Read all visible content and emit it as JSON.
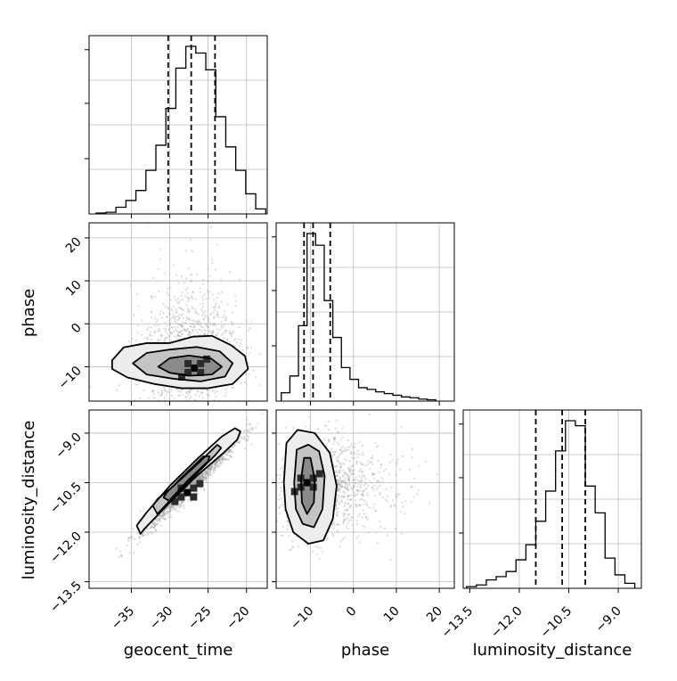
{
  "chart_data": {
    "type": "corner",
    "parameters": [
      "geocent_time",
      "phase",
      "luminosity_distance"
    ],
    "axis_ranges": {
      "geocent_time": [
        -40.5,
        -17.3
      ],
      "phase": [
        -18,
        23.5
      ],
      "luminosity_distance": [
        -13.7,
        -8.3
      ]
    },
    "ticks": {
      "geocent_time": [
        "-35",
        "-30",
        "-25",
        "-20"
      ],
      "phase": [
        "-10",
        "0",
        "10",
        "20"
      ],
      "luminosity_distance": [
        "-13.5",
        "-12.0",
        "-10.5",
        "-9.0"
      ]
    },
    "tick_values": {
      "geocent_time": [
        -35,
        -30,
        -25,
        -20
      ],
      "phase": [
        -10,
        0,
        10,
        20
      ],
      "luminosity_distance": [
        -13.5,
        -12.0,
        -10.5,
        -9.0
      ]
    },
    "grid": true,
    "quantiles": {
      "geocent_time": [
        -30.2,
        -27.2,
        -24.1
      ],
      "phase": [
        -11.5,
        -9.4,
        -5.4
      ],
      "luminosity_distance": [
        -11.5,
        -10.7,
        -10.0
      ]
    },
    "histograms": {
      "geocent_time": {
        "edges": [
          -39.6,
          -38.3,
          -37.0,
          -35.7,
          -34.4,
          -33.1,
          -31.8,
          -30.5,
          -29.2,
          -27.9,
          -26.6,
          -25.3,
          -24.0,
          -22.7,
          -21.4,
          -20.1,
          -18.8,
          -17.5
        ],
        "counts": [
          0.005,
          0.01,
          0.04,
          0.08,
          0.14,
          0.26,
          0.41,
          0.63,
          0.87,
          1.0,
          0.96,
          0.86,
          0.58,
          0.4,
          0.26,
          0.12,
          0.03
        ]
      },
      "phase": {
        "edges": [
          -16.8,
          -14.8,
          -12.8,
          -10.8,
          -8.8,
          -6.8,
          -4.8,
          -2.8,
          -0.8,
          1.2,
          3.2,
          5.2,
          7.2,
          9.2,
          11.2,
          13.2,
          15.2,
          17.2,
          19.2
        ],
        "counts": [
          0.05,
          0.15,
          0.45,
          1.0,
          0.93,
          0.6,
          0.38,
          0.2,
          0.13,
          0.08,
          0.07,
          0.055,
          0.045,
          0.035,
          0.025,
          0.02,
          0.012,
          0.008
        ]
      },
      "luminosity_distance": {
        "edges": [
          -13.6,
          -13.3,
          -13.0,
          -12.7,
          -12.4,
          -12.1,
          -11.8,
          -11.5,
          -11.2,
          -10.9,
          -10.6,
          -10.3,
          -10.0,
          -9.7,
          -9.4,
          -9.1,
          -8.8,
          -8.5
        ],
        "counts": [
          0.01,
          0.02,
          0.05,
          0.07,
          0.1,
          0.17,
          0.26,
          0.4,
          0.58,
          0.82,
          1.0,
          0.97,
          0.61,
          0.45,
          0.18,
          0.08,
          0.03
        ]
      }
    },
    "pairs": [
      {
        "x": "geocent_time",
        "y": "phase",
        "mean": [
          -27.5,
          -9.5
        ],
        "std": [
          3.2,
          5.0
        ],
        "correlation": 0.05,
        "mode": [
          -26.8,
          -10.3
        ],
        "contours": [
          [
            [
              -37.5,
              -8.5
            ],
            [
              -36.0,
              -5.5
            ],
            [
              -33.0,
              -4.5
            ],
            [
              -30.0,
              -4.5
            ],
            [
              -27.0,
              -3.0
            ],
            [
              -24.5,
              -2.8
            ],
            [
              -22.0,
              -5.0
            ],
            [
              -20.2,
              -7.5
            ],
            [
              -19.8,
              -10.5
            ],
            [
              -21.8,
              -14.0
            ],
            [
              -25.0,
              -15.0
            ],
            [
              -28.5,
              -15.0
            ],
            [
              -32.0,
              -14.0
            ],
            [
              -35.5,
              -12.5
            ],
            [
              -37.5,
              -10.5
            ]
          ],
          [
            [
              -34.8,
              -9.2
            ],
            [
              -33.0,
              -6.8
            ],
            [
              -30.0,
              -6.0
            ],
            [
              -26.5,
              -5.4
            ],
            [
              -23.5,
              -6.4
            ],
            [
              -21.8,
              -9.2
            ],
            [
              -22.8,
              -12.3
            ],
            [
              -26.0,
              -13.4
            ],
            [
              -29.5,
              -12.8
            ],
            [
              -33.0,
              -11.8
            ]
          ],
          [
            [
              -31.5,
              -10.0
            ],
            [
              -30.0,
              -8.0
            ],
            [
              -27.5,
              -7.4
            ],
            [
              -24.6,
              -8.1
            ],
            [
              -23.2,
              -10.0
            ],
            [
              -24.5,
              -11.8
            ],
            [
              -27.5,
              -12.1
            ],
            [
              -30.0,
              -11.4
            ]
          ]
        ]
      },
      {
        "x": "geocent_time",
        "y": "luminosity_distance",
        "mean": [
          -27.5,
          -10.6
        ],
        "std": [
          3.2,
          0.72
        ],
        "correlation": 0.97,
        "mode": [
          -27.7,
          -10.8
        ],
        "contours": [
          [
            [
              -34.3,
              -11.8
            ],
            [
              -33.8,
              -12.05
            ],
            [
              -33.3,
              -11.9
            ],
            [
              -30.0,
              -11.1
            ],
            [
              -26.5,
              -10.3
            ],
            [
              -23.0,
              -9.6
            ],
            [
              -21.2,
              -9.2
            ],
            [
              -20.8,
              -8.95
            ],
            [
              -21.5,
              -8.85
            ],
            [
              -23.2,
              -9.1
            ],
            [
              -26.5,
              -9.8
            ],
            [
              -30.0,
              -10.6
            ],
            [
              -33.0,
              -11.4
            ]
          ],
          [
            [
              -32.2,
              -11.2
            ],
            [
              -31.6,
              -11.45
            ],
            [
              -30.0,
              -11.05
            ],
            [
              -26.8,
              -10.3
            ],
            [
              -24.0,
              -9.65
            ],
            [
              -23.3,
              -9.45
            ],
            [
              -23.8,
              -9.35
            ],
            [
              -26.0,
              -9.85
            ],
            [
              -29.5,
              -10.6
            ],
            [
              -31.6,
              -11.0
            ]
          ],
          [
            [
              -30.8,
              -10.95
            ],
            [
              -30.1,
              -11.05
            ],
            [
              -27.5,
              -10.4
            ],
            [
              -25.0,
              -9.85
            ],
            [
              -24.8,
              -9.7
            ],
            [
              -25.6,
              -9.7
            ],
            [
              -28.5,
              -10.35
            ],
            [
              -30.4,
              -10.8
            ]
          ]
        ]
      },
      {
        "x": "phase",
        "y": "luminosity_distance",
        "mean": [
          -9.0,
          -10.6
        ],
        "std": [
          4.5,
          0.75
        ],
        "correlation": 0.1,
        "mode": [
          -10.8,
          -10.5
        ],
        "contours": [
          [
            [
              -16.2,
              -10.5
            ],
            [
              -15.6,
              -9.3
            ],
            [
              -13.0,
              -8.9
            ],
            [
              -9.0,
              -9.0
            ],
            [
              -5.5,
              -9.6
            ],
            [
              -3.9,
              -10.6
            ],
            [
              -4.8,
              -11.6
            ],
            [
              -7.0,
              -12.25
            ],
            [
              -10.5,
              -12.35
            ],
            [
              -14.0,
              -12.0
            ],
            [
              -15.8,
              -11.3
            ]
          ],
          [
            [
              -13.8,
              -10.5
            ],
            [
              -13.2,
              -9.5
            ],
            [
              -10.5,
              -9.35
            ],
            [
              -8.0,
              -9.55
            ],
            [
              -6.7,
              -10.3
            ],
            [
              -7.2,
              -11.3
            ],
            [
              -9.2,
              -11.85
            ],
            [
              -11.8,
              -11.75
            ],
            [
              -13.4,
              -11.3
            ]
          ],
          [
            [
              -12.2,
              -10.4
            ],
            [
              -11.5,
              -9.75
            ],
            [
              -10.0,
              -9.75
            ],
            [
              -9.0,
              -10.4
            ],
            [
              -9.2,
              -11.1
            ],
            [
              -10.8,
              -11.45
            ],
            [
              -12.0,
              -11.1
            ]
          ]
        ]
      }
    ]
  }
}
